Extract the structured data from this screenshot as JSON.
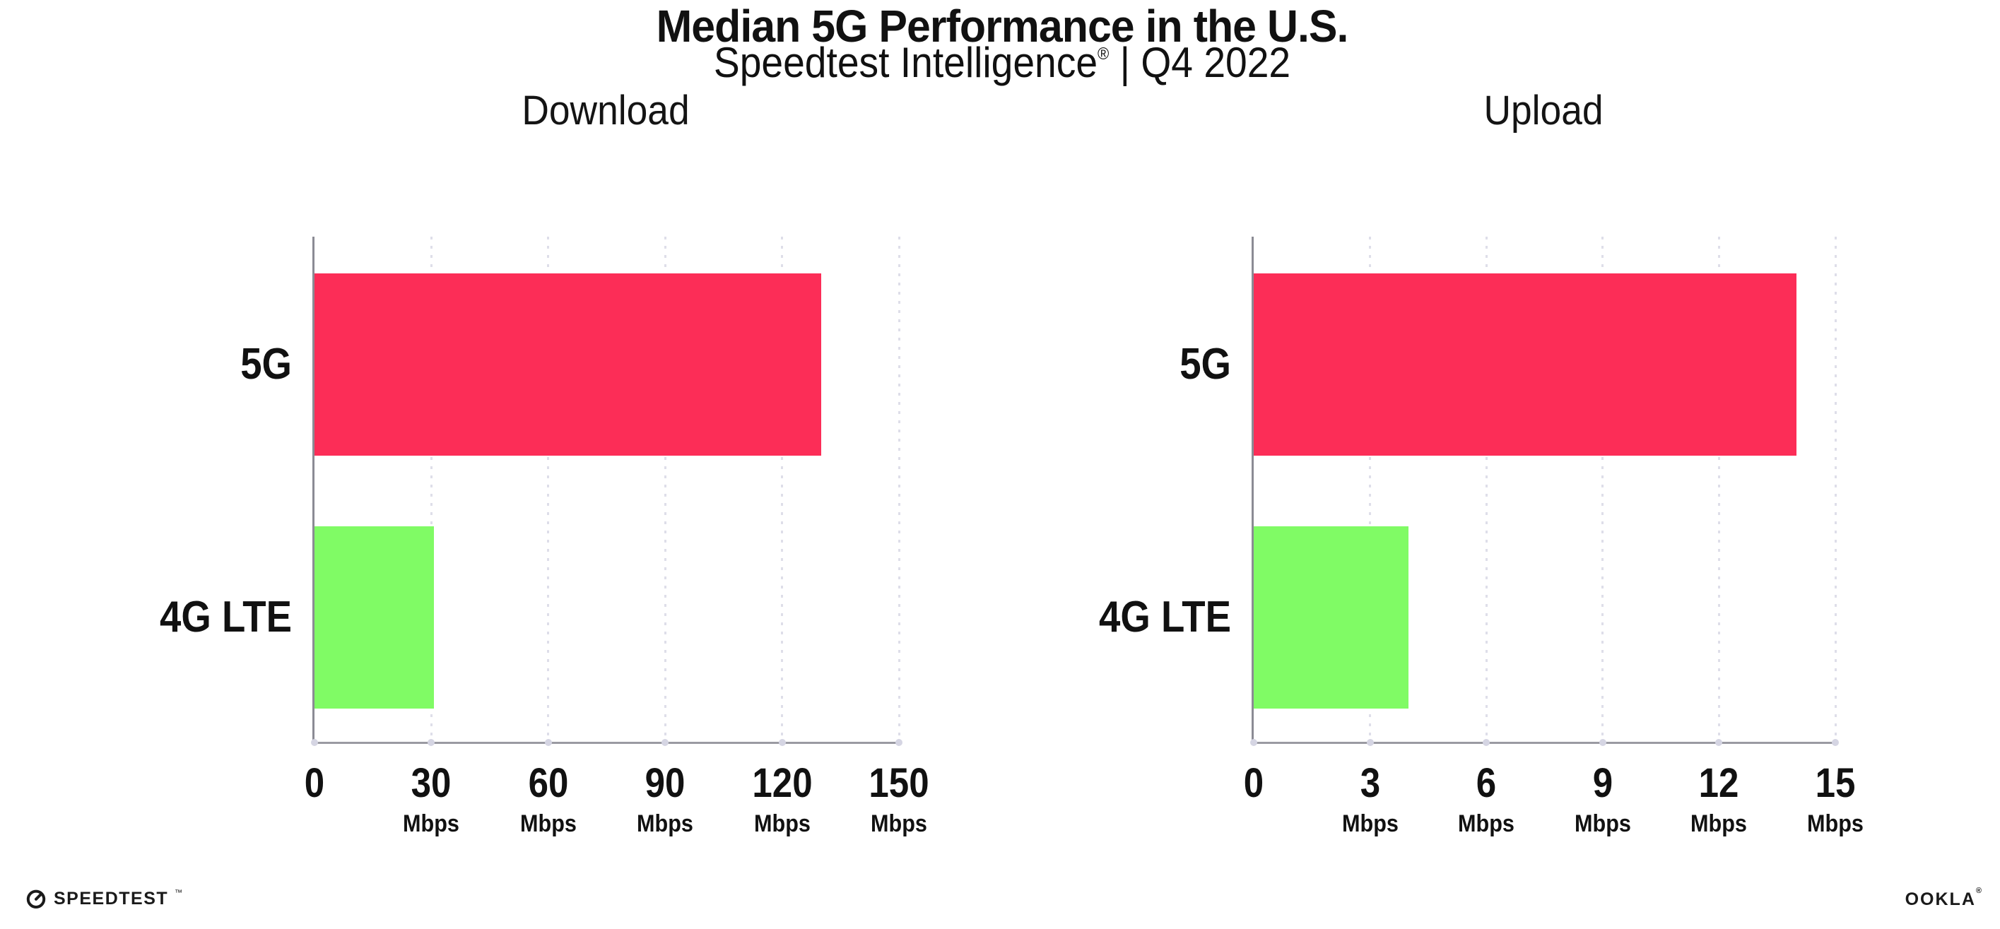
{
  "header": {
    "title": "Median 5G Performance in the U.S.",
    "subtitle_brand": "Speedtest Intelligence",
    "subtitle_registered": "®",
    "subtitle_separator": "|",
    "subtitle_period": "Q4 2022"
  },
  "footer": {
    "speedtest_label": "SPEEDTEST",
    "speedtest_trademark": "™",
    "ookla_label": "OOKLA",
    "ookla_registered": "®"
  },
  "colors": {
    "bar_5g": "#FC2D57",
    "bar_4g_lte": "#80FB65",
    "axis": "#8B8B94",
    "gridline": "#DEDEE9",
    "tick_dot": "#D5D5E3",
    "text": "#111111",
    "background": "#FFFFFF"
  },
  "chart_data": [
    {
      "type": "bar",
      "orientation": "horizontal",
      "title": "Download",
      "categories": [
        "5G",
        "4G LTE"
      ],
      "values": [
        130,
        30.6
      ],
      "unit": "Mbps",
      "xlim": [
        0,
        150
      ],
      "xticks": [
        0,
        30,
        60,
        90,
        120,
        150
      ],
      "grid": "vertical-dotted",
      "legend": "none",
      "bar_colors": [
        "#FC2D57",
        "#80FB65"
      ]
    },
    {
      "type": "bar",
      "orientation": "horizontal",
      "title": "Upload",
      "categories": [
        "5G",
        "4G LTE"
      ],
      "values": [
        14,
        4
      ],
      "unit": "Mbps",
      "xlim": [
        0,
        15
      ],
      "xticks": [
        0,
        3,
        6,
        9,
        12,
        15
      ],
      "grid": "vertical-dotted",
      "legend": "none",
      "bar_colors": [
        "#FC2D57",
        "#80FB65"
      ]
    }
  ]
}
